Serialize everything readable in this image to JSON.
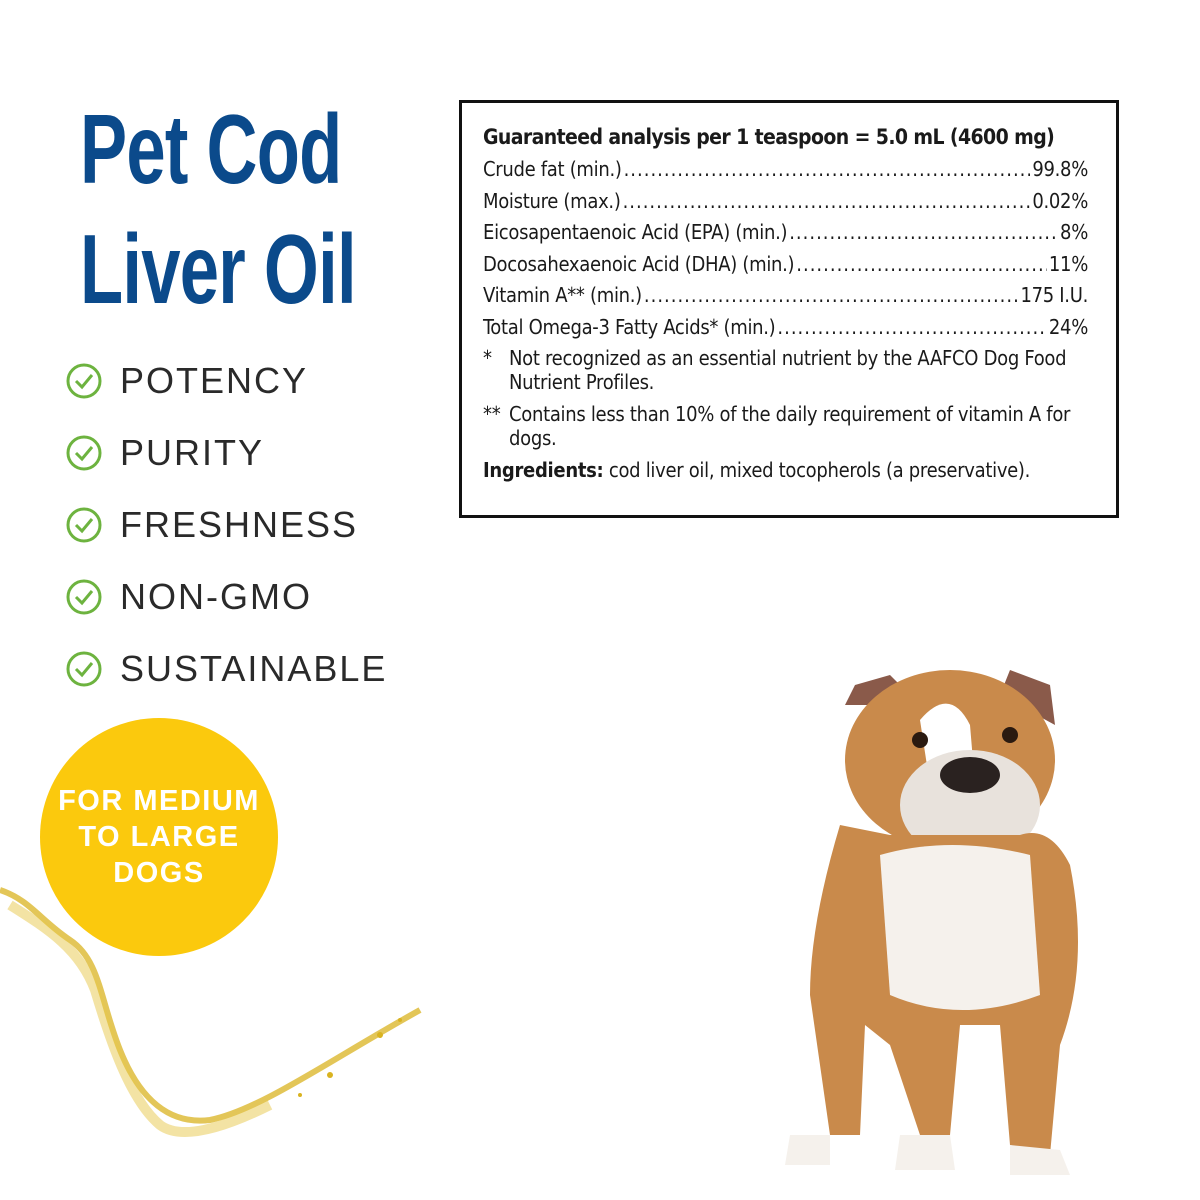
{
  "title": {
    "line1": "Pet Cod",
    "line2": "Liver Oil"
  },
  "features": [
    {
      "label": "POTENCY",
      "icon": "check-circle-icon"
    },
    {
      "label": "PURITY",
      "icon": "check-circle-icon"
    },
    {
      "label": "FRESHNESS",
      "icon": "check-circle-icon"
    },
    {
      "label": "NON-GMO",
      "icon": "check-circle-icon"
    },
    {
      "label": "SUSTAINABLE",
      "icon": "check-circle-icon"
    }
  ],
  "badge": {
    "line1": "FOR MEDIUM",
    "line2": "TO LARGE",
    "line3": "DOGS"
  },
  "analysis": {
    "heading": "Guaranteed analysis per 1 teaspoon = 5.0 mL (4600 mg)",
    "rows": [
      {
        "label": "Crude fat (min.)",
        "value": "99.8%"
      },
      {
        "label": "Moisture (max.)",
        "value": "0.02%"
      },
      {
        "label": "Eicosapentaenoic Acid (EPA) (min.)",
        "value": "8%"
      },
      {
        "label": "Docosahexaenoic Acid (DHA) (min.)",
        "value": "11%"
      },
      {
        "label": "Vitamin A** (min.)",
        "value": "175 I.U."
      },
      {
        "label": "Total Omega-3 Fatty Acids* (min.)",
        "value": "24%"
      }
    ],
    "notes": [
      {
        "marker": "*",
        "text": "Not recognized as an essential nutrient by the AAFCO Dog Food Nutrient Profiles."
      },
      {
        "marker": "**",
        "text": "Contains less than 10% of the daily requirement of vitamin A for dogs."
      }
    ],
    "ingredients_label": "Ingredients:",
    "ingredients_text": " cod liver oil, mixed tocopherols (a preservative)."
  },
  "colors": {
    "title": "#0b4a8b",
    "check": "#6db33f",
    "badge": "#fbc90d",
    "oil": "#d9b320"
  }
}
